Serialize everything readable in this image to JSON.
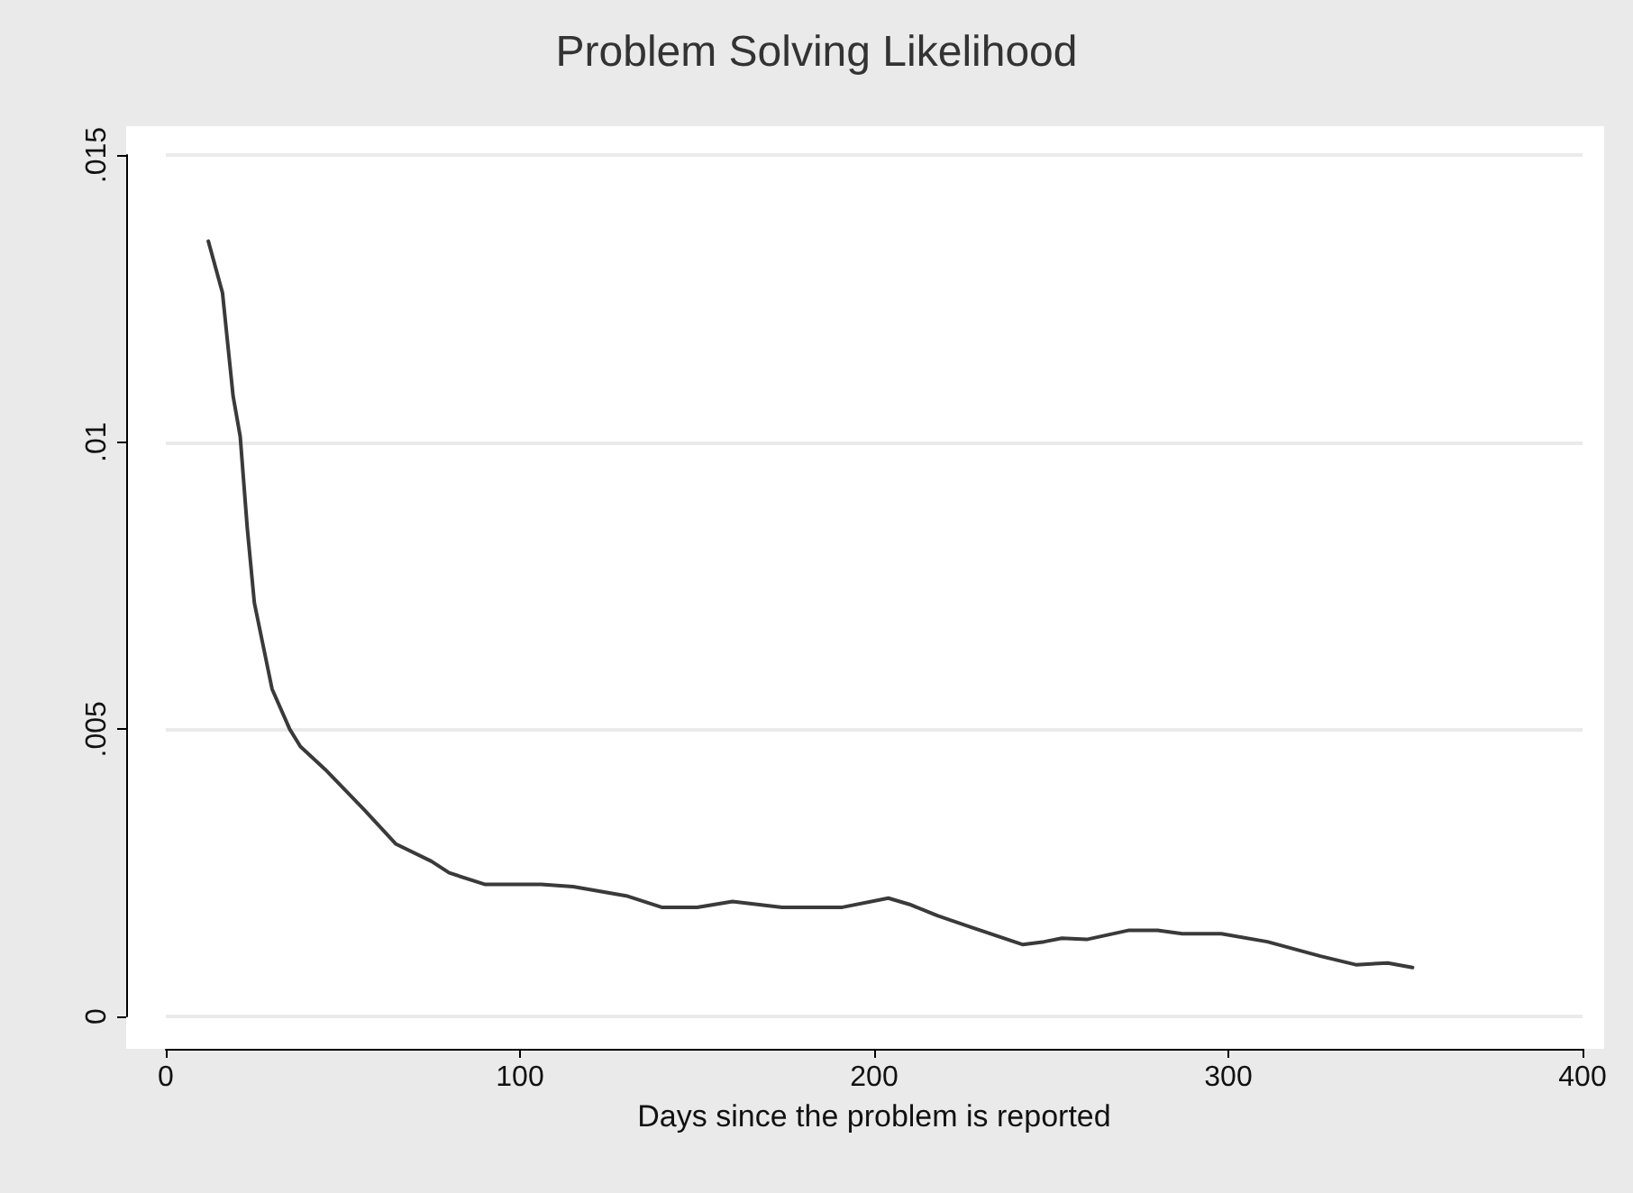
{
  "chart_data": {
    "type": "line",
    "title": "Problem Solving Likelihood",
    "xlabel": "Days since the problem is reported",
    "xlim": [
      0,
      400
    ],
    "xticks": [
      0,
      100,
      200,
      300,
      400
    ],
    "ylim": [
      0,
      0.015
    ],
    "yticks": [
      {
        "value": 0,
        "label": "0"
      },
      {
        "value": 0.005,
        "label": ".005"
      },
      {
        "value": 0.01,
        "label": ".01"
      },
      {
        "value": 0.015,
        "label": ".015"
      }
    ],
    "grid": "y",
    "marker": "none",
    "line_style": "solid",
    "series": [
      {
        "color": "#3a3a3a",
        "x": [
          12,
          16,
          19,
          21,
          23,
          25,
          27,
          30,
          35,
          38,
          45,
          56,
          65,
          75,
          80,
          90,
          100,
          106,
          115,
          130,
          140,
          150,
          160,
          174,
          191,
          204,
          210,
          218,
          228,
          242,
          248,
          253,
          260,
          272,
          280,
          287,
          298,
          311,
          326,
          336,
          345,
          352
        ],
        "values": [
          0.0135,
          0.0126,
          0.0108,
          0.0101,
          0.0085,
          0.0072,
          0.0066,
          0.0057,
          0.005,
          0.0047,
          0.0043,
          0.0036,
          0.003,
          0.0027,
          0.0025,
          0.0023,
          0.0023,
          0.0023,
          0.00226,
          0.0021,
          0.0019,
          0.0019,
          0.002,
          0.0019,
          0.0019,
          0.00206,
          0.00195,
          0.00175,
          0.00154,
          0.00125,
          0.0013,
          0.00136,
          0.00134,
          0.0015,
          0.0015,
          0.00144,
          0.00144,
          0.0013,
          0.00105,
          0.0009,
          0.00093,
          0.00085
        ]
      }
    ]
  }
}
